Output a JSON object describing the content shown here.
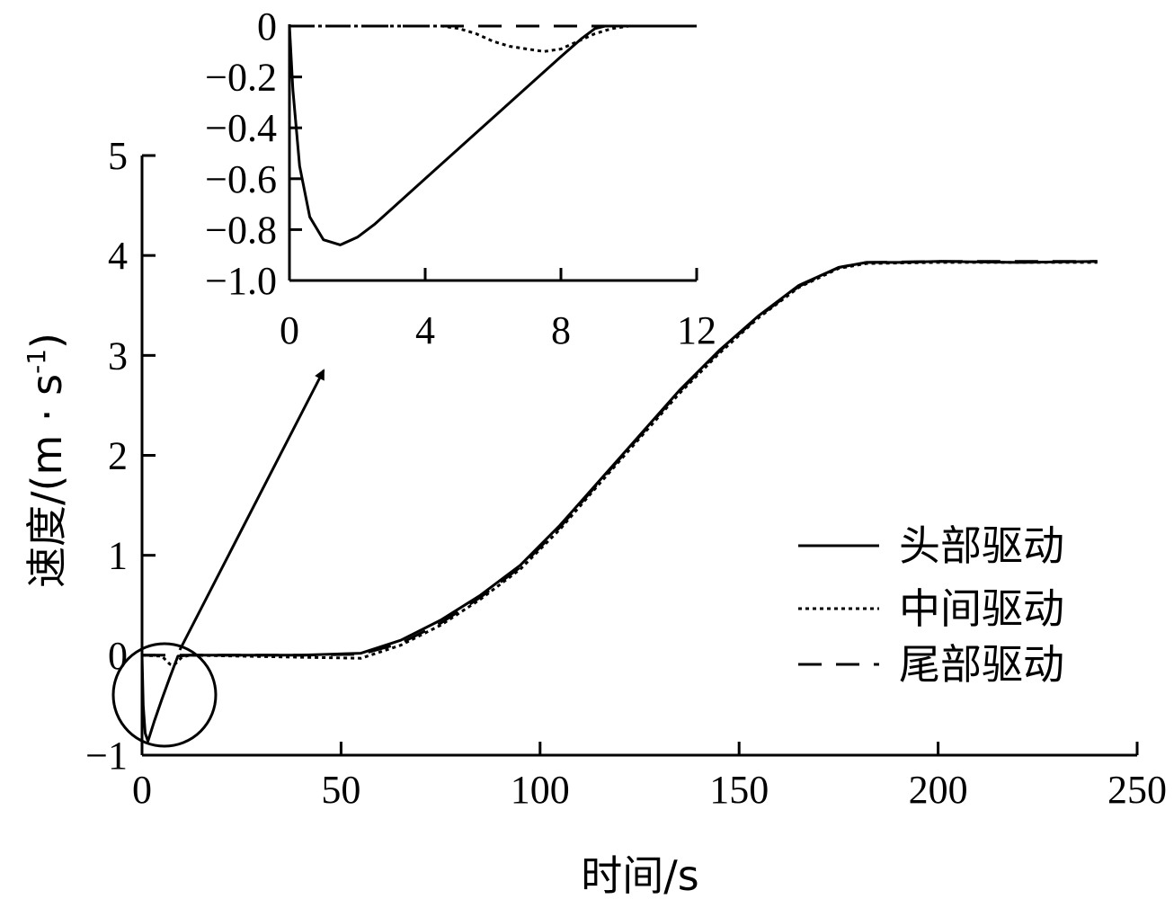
{
  "chart_data": [
    {
      "type": "line",
      "xlabel": "时间/s",
      "ylabel": "速度/(m · s",
      "ylabel_sup": "-1",
      "ylabel_close": ")",
      "xlim": [
        0,
        250
      ],
      "ylim": [
        -1,
        5
      ],
      "xticks": [
        0,
        50,
        100,
        150,
        200,
        250
      ],
      "yticks": [
        -1,
        0,
        1,
        2,
        3,
        4,
        5
      ],
      "xtick_labels": [
        "0",
        "50",
        "100",
        "150",
        "200",
        "250"
      ],
      "ytick_labels": [
        "−1",
        "0",
        "1",
        "2",
        "3",
        "4",
        "5"
      ],
      "legend_position": "right",
      "series": [
        {
          "name": "头部驱动",
          "style": "solid",
          "points": [
            [
              0,
              0
            ],
            [
              0.3,
              -0.5
            ],
            [
              0.8,
              -0.78
            ],
            [
              1.5,
              -0.86
            ],
            [
              3,
              -0.67
            ],
            [
              5,
              -0.44
            ],
            [
              7,
              -0.22
            ],
            [
              9,
              -0.01
            ],
            [
              12,
              0
            ],
            [
              40,
              0
            ],
            [
              55,
              0.02
            ],
            [
              65,
              0.15
            ],
            [
              75,
              0.35
            ],
            [
              85,
              0.6
            ],
            [
              95,
              0.9
            ],
            [
              105,
              1.3
            ],
            [
              115,
              1.75
            ],
            [
              125,
              2.2
            ],
            [
              135,
              2.65
            ],
            [
              145,
              3.05
            ],
            [
              155,
              3.4
            ],
            [
              165,
              3.7
            ],
            [
              175,
              3.88
            ],
            [
              182,
              3.93
            ],
            [
              190,
              3.93
            ],
            [
              200,
              3.94
            ],
            [
              220,
              3.93
            ],
            [
              240,
              3.94
            ]
          ]
        },
        {
          "name": "中间驱动",
          "style": "dotted",
          "points": [
            [
              0,
              0
            ],
            [
              5,
              -0.01
            ],
            [
              6,
              -0.05
            ],
            [
              7,
              -0.09
            ],
            [
              8,
              -0.1
            ],
            [
              9,
              -0.06
            ],
            [
              10,
              -0.02
            ],
            [
              12,
              0
            ],
            [
              40,
              -0.02
            ],
            [
              55,
              -0.03
            ],
            [
              65,
              0.1
            ],
            [
              75,
              0.3
            ],
            [
              85,
              0.56
            ],
            [
              95,
              0.86
            ],
            [
              105,
              1.26
            ],
            [
              115,
              1.72
            ],
            [
              125,
              2.17
            ],
            [
              135,
              2.62
            ],
            [
              145,
              3.02
            ],
            [
              155,
              3.38
            ],
            [
              165,
              3.68
            ],
            [
              175,
              3.87
            ],
            [
              182,
              3.92
            ],
            [
              200,
              3.93
            ],
            [
              240,
              3.93
            ]
          ]
        },
        {
          "name": "尾部驱动",
          "style": "dashed",
          "points": [
            [
              0,
              0
            ],
            [
              12,
              0
            ],
            [
              40,
              0
            ],
            [
              55,
              0.01
            ],
            [
              65,
              0.12
            ],
            [
              75,
              0.32
            ],
            [
              85,
              0.58
            ],
            [
              95,
              0.88
            ],
            [
              105,
              1.28
            ],
            [
              115,
              1.74
            ],
            [
              125,
              2.19
            ],
            [
              135,
              2.64
            ],
            [
              145,
              3.04
            ],
            [
              155,
              3.39
            ],
            [
              165,
              3.69
            ],
            [
              175,
              3.88
            ],
            [
              182,
              3.93
            ],
            [
              200,
              3.94
            ],
            [
              240,
              3.94
            ]
          ]
        }
      ],
      "annotations": [
        "circle-highlight",
        "arrow-to-inset"
      ]
    },
    {
      "type": "line",
      "xlim": [
        0,
        12
      ],
      "ylim": [
        -1.0,
        0
      ],
      "xticks": [
        0,
        4,
        8,
        12
      ],
      "yticks": [
        0,
        -0.2,
        -0.4,
        -0.6,
        -0.8,
        -1.0
      ],
      "xtick_labels": [
        "0",
        "4",
        "8",
        "12"
      ],
      "ytick_labels": [
        "0",
        "−0.2",
        "−0.4",
        "−0.6",
        "−0.8",
        "−1.0"
      ],
      "series": [
        {
          "name": "头部驱动",
          "style": "solid",
          "points": [
            [
              0,
              0
            ],
            [
              0.1,
              -0.25
            ],
            [
              0.3,
              -0.55
            ],
            [
              0.6,
              -0.75
            ],
            [
              1,
              -0.84
            ],
            [
              1.5,
              -0.86
            ],
            [
              2,
              -0.83
            ],
            [
              2.5,
              -0.78
            ],
            [
              3,
              -0.72
            ],
            [
              4,
              -0.6
            ],
            [
              5,
              -0.48
            ],
            [
              6,
              -0.36
            ],
            [
              7,
              -0.24
            ],
            [
              8,
              -0.12
            ],
            [
              8.6,
              -0.05
            ],
            [
              9,
              -0.01
            ],
            [
              9.3,
              0
            ],
            [
              12,
              0
            ]
          ]
        },
        {
          "name": "中间驱动",
          "style": "dotted",
          "points": [
            [
              0,
              0
            ],
            [
              4.5,
              0
            ],
            [
              5,
              -0.01
            ],
            [
              5.5,
              -0.03
            ],
            [
              6,
              -0.06
            ],
            [
              6.5,
              -0.08
            ],
            [
              7,
              -0.09
            ],
            [
              7.5,
              -0.1
            ],
            [
              8,
              -0.09
            ],
            [
              8.5,
              -0.06
            ],
            [
              9,
              -0.03
            ],
            [
              9.5,
              -0.01
            ],
            [
              10,
              0
            ],
            [
              12,
              0
            ]
          ]
        },
        {
          "name": "尾部驱动",
          "style": "dashed",
          "points": [
            [
              0,
              0
            ],
            [
              12,
              0
            ]
          ]
        }
      ]
    }
  ]
}
